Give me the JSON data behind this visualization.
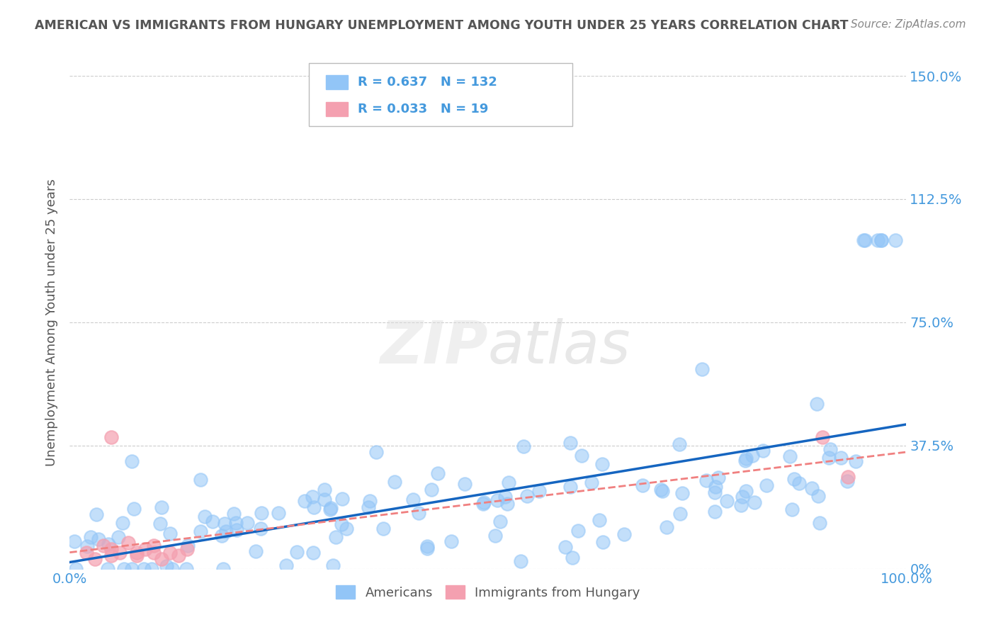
{
  "title": "AMERICAN VS IMMIGRANTS FROM HUNGARY UNEMPLOYMENT AMONG YOUTH UNDER 25 YEARS CORRELATION CHART",
  "source": "Source: ZipAtlas.com",
  "ylabel": "Unemployment Among Youth under 25 years",
  "xlim": [
    0,
    100
  ],
  "ylim": [
    0,
    150
  ],
  "yticks": [
    0,
    37.5,
    75.0,
    112.5,
    150.0
  ],
  "ytick_labels": [
    "0%",
    "37.5%",
    "75.0%",
    "112.5%",
    "150.0%"
  ],
  "blue_R": 0.637,
  "blue_N": 132,
  "pink_R": 0.033,
  "pink_N": 19,
  "blue_color": "#92C5F7",
  "pink_color": "#F4A0B0",
  "blue_line_color": "#1565C0",
  "pink_line_color": "#F08080",
  "title_color": "#555555",
  "axis_label_color": "#555555",
  "tick_color": "#4499DD",
  "grid_color": "#CCCCCC",
  "legend_label1": "Americans",
  "legend_label2": "Immigrants from Hungary",
  "watermark_zip": "ZIP",
  "watermark_atlas": "atlas",
  "background_color": "#FFFFFF"
}
